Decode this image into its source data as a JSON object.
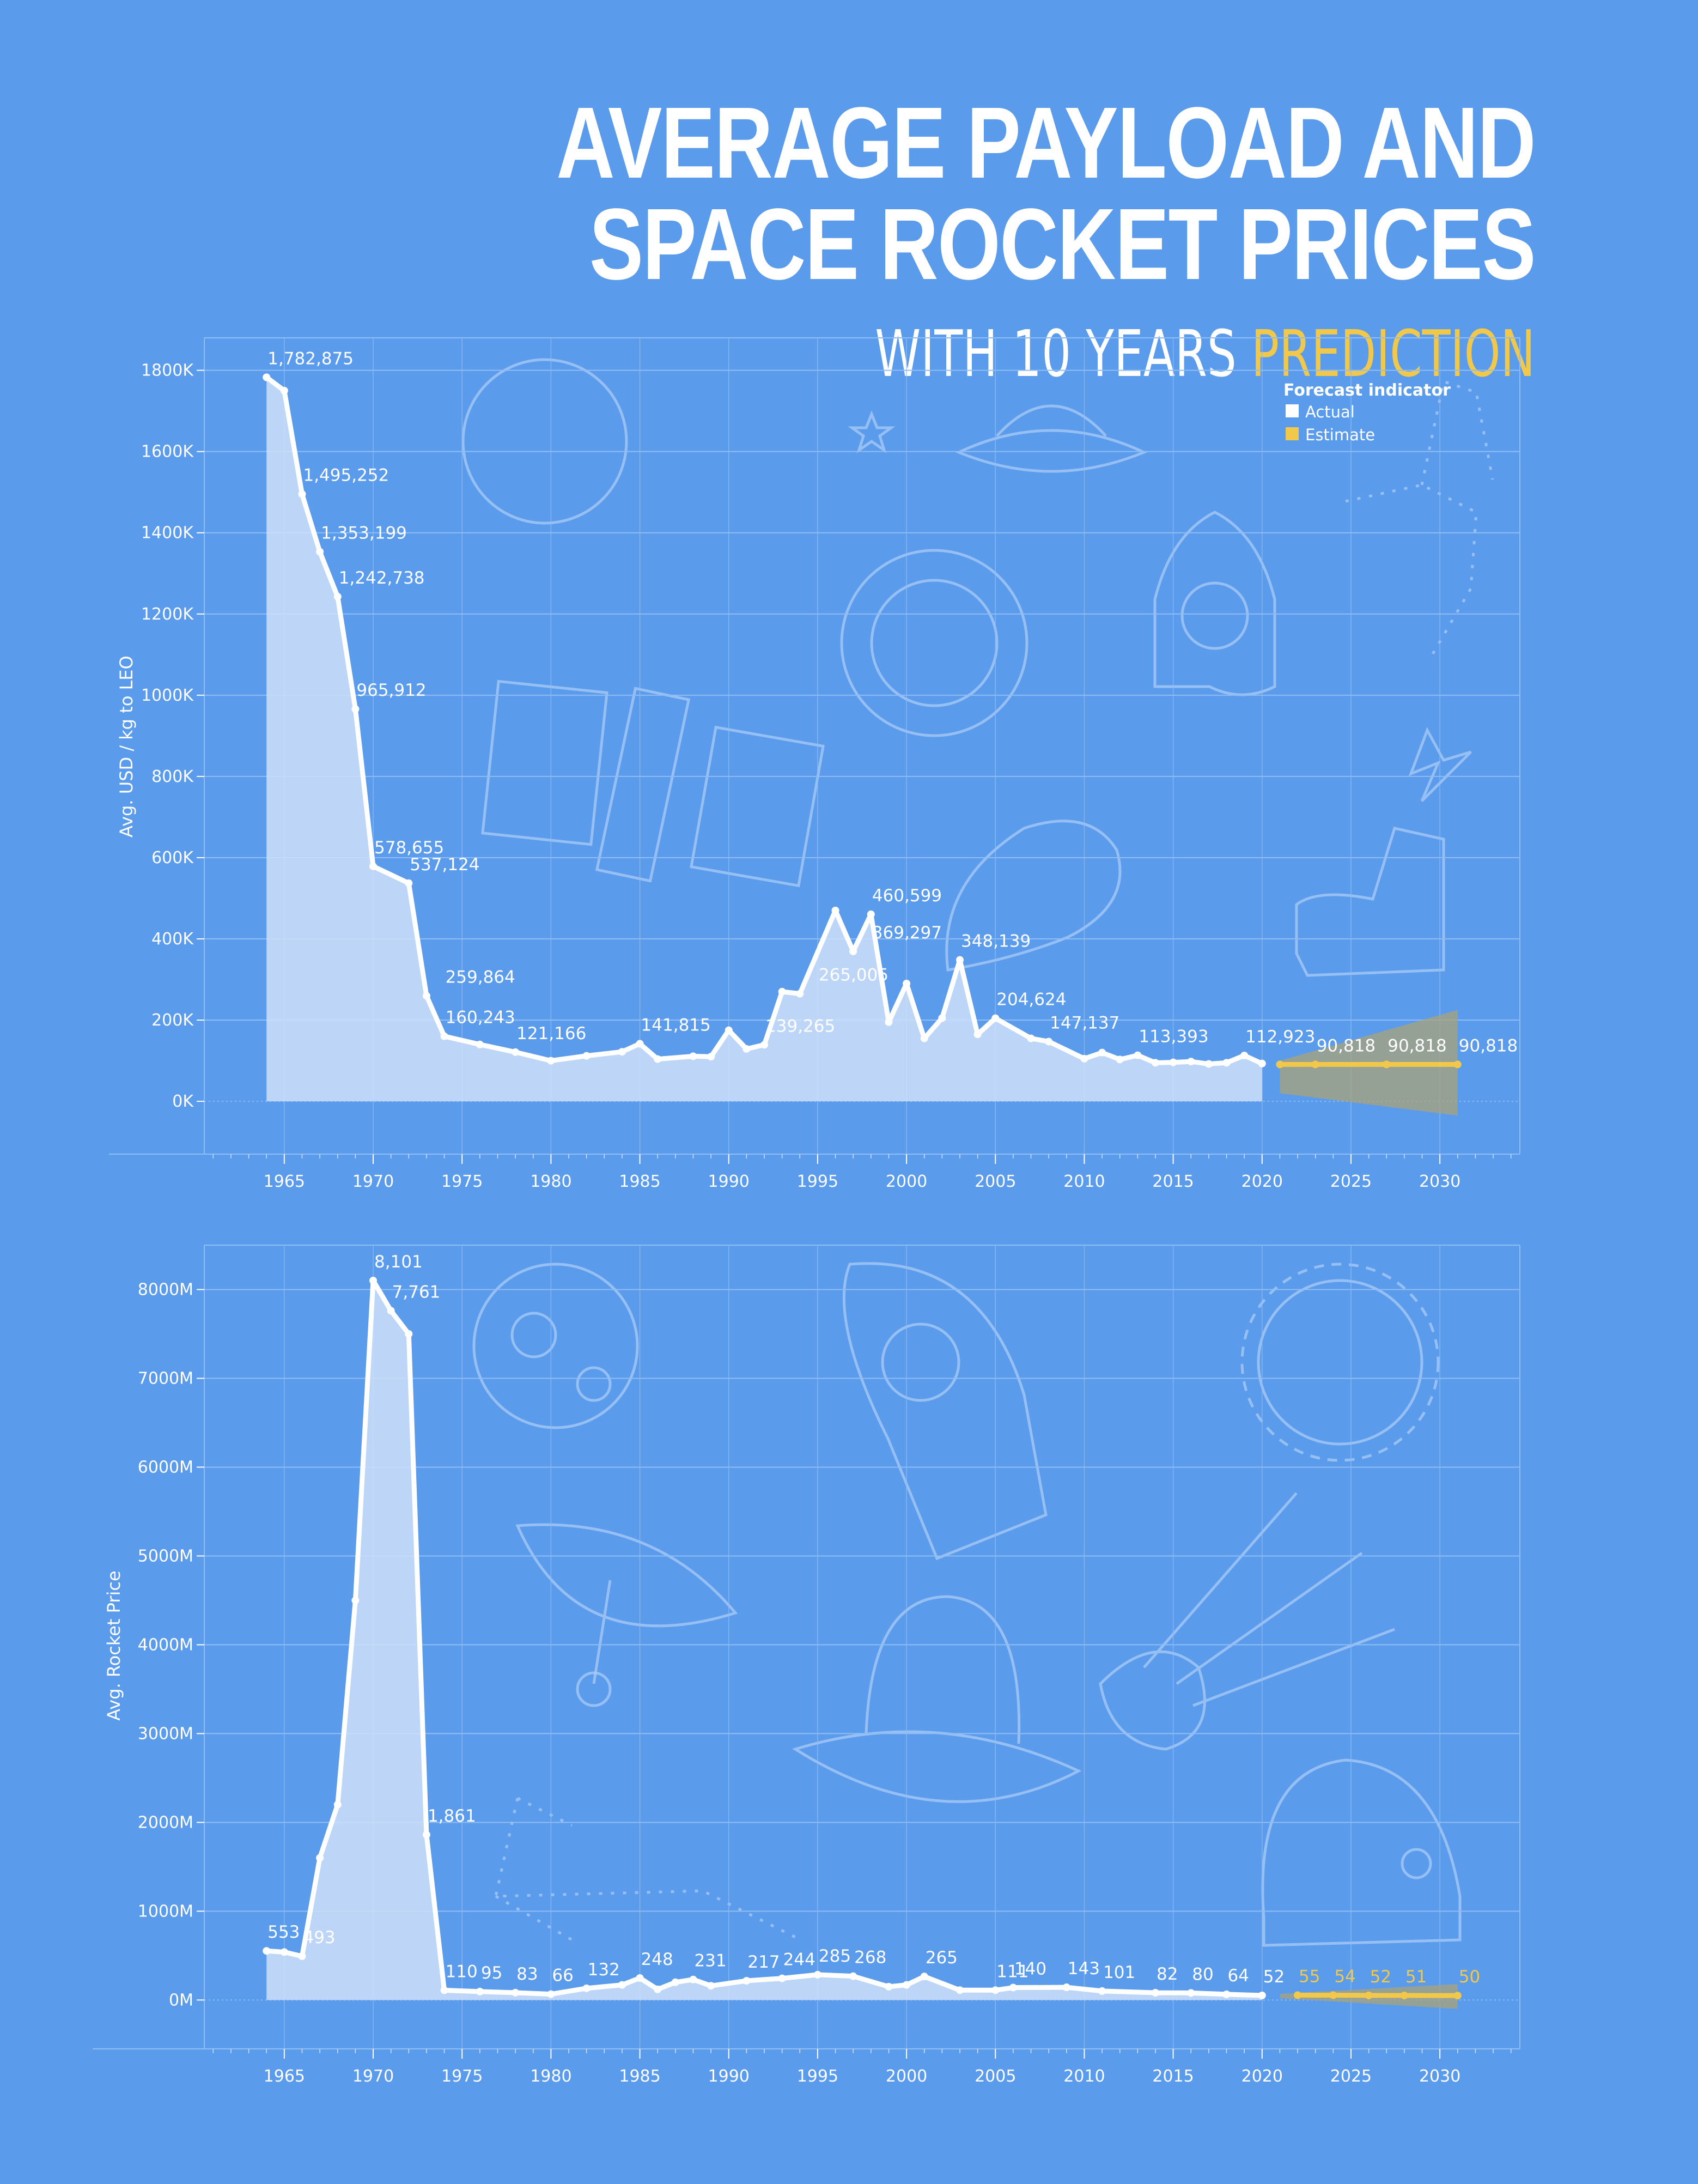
{
  "title": "AVERAGE PAYLOAD AND SPACE ROCKET PRICES",
  "subtitle_prefix": "WITH 10 YEARS ",
  "subtitle_accent": "PREDICTION",
  "colors": {
    "background": "#5b9bec",
    "actual": "#ffffff",
    "estimate": "#f2c84b",
    "area_fill": "#cfe1f9",
    "grid": "#8fbcf3"
  },
  "legend": {
    "title": "Forecast indicator",
    "actual_label": "Actual",
    "estimate_label": "Estimate"
  },
  "chart_data": [
    {
      "type": "area",
      "ylabel": "Avg. USD / kg to LEO",
      "ylim": [
        -130000,
        1880000
      ],
      "xlim": [
        1960.5,
        2034.5
      ],
      "y_ticks": [
        0,
        200000,
        400000,
        600000,
        800000,
        1000000,
        1200000,
        1400000,
        1600000,
        1800000
      ],
      "y_tick_labels": [
        "0K",
        "200K",
        "400K",
        "600K",
        "800K",
        "1000K",
        "1200K",
        "1400K",
        "1600K",
        "1800K"
      ],
      "x_ticks": [
        1965,
        1970,
        1975,
        1980,
        1985,
        1990,
        1995,
        2000,
        2005,
        2010,
        2015,
        2020,
        2025,
        2030
      ],
      "x_tick_labels": [
        "1965",
        "1970",
        "1975",
        "1980",
        "1985",
        "1990",
        "1995",
        "2000",
        "2005",
        "2010",
        "2015",
        "2020",
        "2025",
        "2030"
      ],
      "grid": true,
      "legend_position": "top-right",
      "series": [
        {
          "name": "Actual",
          "x": [
            1964,
            1965,
            1966,
            1967,
            1968,
            1969,
            1970,
            1972,
            1973,
            1974,
            1976,
            1978,
            1980,
            1982,
            1984,
            1985,
            1986,
            1988,
            1989,
            1990,
            1991,
            1992,
            1993,
            1994,
            1996,
            1997,
            1998,
            1999,
            2000,
            2001,
            2002,
            2003,
            2004,
            2005,
            2007,
            2008,
            2010,
            2011,
            2012,
            2013,
            2014,
            2015,
            2016,
            2017,
            2018,
            2019,
            2020
          ],
          "y": [
            1782875,
            1750000,
            1495252,
            1353199,
            1242738,
            965912,
            578655,
            537124,
            259864,
            160243,
            140000,
            121166,
            100000,
            112000,
            122000,
            141815,
            104000,
            111000,
            110000,
            175000,
            129000,
            139265,
            270000,
            265005,
            470000,
            369297,
            460599,
            195000,
            290000,
            155000,
            205000,
            348139,
            165000,
            204624,
            155000,
            147137,
            105000,
            120000,
            103000,
            113393,
            95000,
            96000,
            98000,
            92000,
            95000,
            112923,
            93000
          ]
        },
        {
          "name": "Estimate",
          "x": [
            2021,
            2023,
            2027,
            2031
          ],
          "y": [
            90818,
            90818,
            90818,
            90818
          ]
        }
      ],
      "data_labels": [
        {
          "x": 1964,
          "y": 1782875,
          "text": "1,782,875"
        },
        {
          "x": 1966,
          "y": 1495252,
          "text": "1,495,252"
        },
        {
          "x": 1967,
          "y": 1353199,
          "text": "1,353,199"
        },
        {
          "x": 1968,
          "y": 1242738,
          "text": "1,242,738"
        },
        {
          "x": 1969,
          "y": 965912,
          "text": "965,912"
        },
        {
          "x": 1970,
          "y": 578655,
          "text": "578,655"
        },
        {
          "x": 1972,
          "y": 537124,
          "text": "537,124"
        },
        {
          "x": 1974,
          "y": 259864,
          "text": "259,864"
        },
        {
          "x": 1974,
          "y": 160243,
          "text": "160,243"
        },
        {
          "x": 1978,
          "y": 121166,
          "text": "121,166"
        },
        {
          "x": 1985,
          "y": 141815,
          "text": "141,815"
        },
        {
          "x": 1992,
          "y": 139265,
          "text": "139,265"
        },
        {
          "x": 1995,
          "y": 265005,
          "text": "265,005"
        },
        {
          "x": 1998,
          "y": 369297,
          "text": "369,297"
        },
        {
          "x": 1998,
          "y": 460599,
          "text": "460,599"
        },
        {
          "x": 2003,
          "y": 348139,
          "text": "348,139"
        },
        {
          "x": 2005,
          "y": 204624,
          "text": "204,624"
        },
        {
          "x": 2008,
          "y": 147137,
          "text": "147,137"
        },
        {
          "x": 2013,
          "y": 113393,
          "text": "113,393"
        },
        {
          "x": 2019,
          "y": 112923,
          "text": "112,923"
        },
        {
          "x": 2023,
          "y": 90818,
          "text": "90,818"
        },
        {
          "x": 2027,
          "y": 90818,
          "text": "90,818"
        },
        {
          "x": 2031,
          "y": 90818,
          "text": "90,818"
        }
      ],
      "estimate_band": {
        "x": [
          2021,
          2031
        ],
        "lower": [
          20000,
          -35000
        ],
        "upper": [
          100000,
          225000
        ]
      }
    },
    {
      "type": "area",
      "ylabel": "Avg. Rocket Price",
      "ylim": [
        -550,
        8500
      ],
      "xlim": [
        1960.5,
        2034.5
      ],
      "y_ticks": [
        0,
        1000,
        2000,
        3000,
        4000,
        5000,
        6000,
        7000,
        8000
      ],
      "y_tick_labels": [
        "0M",
        "1000M",
        "2000M",
        "3000M",
        "4000M",
        "5000M",
        "6000M",
        "7000M",
        "8000M"
      ],
      "x_ticks": [
        1965,
        1970,
        1975,
        1980,
        1985,
        1990,
        1995,
        2000,
        2005,
        2010,
        2015,
        2020,
        2025,
        2030
      ],
      "x_tick_labels": [
        "1965",
        "1970",
        "1975",
        "1980",
        "1985",
        "1990",
        "1995",
        "2000",
        "2005",
        "2010",
        "2015",
        "2020",
        "2025",
        "2030"
      ],
      "grid": true,
      "series": [
        {
          "name": "Actual",
          "x": [
            1964,
            1965,
            1966,
            1967,
            1968,
            1969,
            1970,
            1971,
            1972,
            1973,
            1974,
            1976,
            1978,
            1980,
            1982,
            1984,
            1985,
            1986,
            1987,
            1988,
            1989,
            1991,
            1993,
            1995,
            1997,
            1999,
            2000,
            2001,
            2003,
            2005,
            2006,
            2009,
            2011,
            2014,
            2016,
            2018,
            2020
          ],
          "y": [
            553,
            540,
            493,
            1600,
            2200,
            4500,
            8101,
            7761,
            7500,
            1861,
            110,
            95,
            83,
            66,
            132,
            170,
            248,
            120,
            200,
            231,
            160,
            217,
            244,
            285,
            268,
            150,
            170,
            265,
            111,
            111,
            140,
            143,
            101,
            82,
            80,
            64,
            52
          ]
        },
        {
          "name": "Estimate",
          "x": [
            2022,
            2024,
            2026,
            2028,
            2031
          ],
          "y": [
            55,
            54,
            52,
            51,
            50
          ]
        }
      ],
      "data_labels": [
        {
          "x": 1964,
          "y": 553,
          "text": "553"
        },
        {
          "x": 1966,
          "y": 493,
          "text": "493"
        },
        {
          "x": 1970,
          "y": 8101,
          "text": "8,101"
        },
        {
          "x": 1971,
          "y": 7761,
          "text": "7,761"
        },
        {
          "x": 1973,
          "y": 1861,
          "text": "1,861"
        },
        {
          "x": 1974,
          "y": 110,
          "text": "110"
        },
        {
          "x": 1976,
          "y": 95,
          "text": "95"
        },
        {
          "x": 1978,
          "y": 83,
          "text": "83"
        },
        {
          "x": 1980,
          "y": 66,
          "text": "66"
        },
        {
          "x": 1982,
          "y": 132,
          "text": "132"
        },
        {
          "x": 1985,
          "y": 248,
          "text": "248"
        },
        {
          "x": 1988,
          "y": 231,
          "text": "231"
        },
        {
          "x": 1991,
          "y": 217,
          "text": "217"
        },
        {
          "x": 1993,
          "y": 244,
          "text": "244"
        },
        {
          "x": 1995,
          "y": 285,
          "text": "285"
        },
        {
          "x": 1997,
          "y": 268,
          "text": "268"
        },
        {
          "x": 2001,
          "y": 265,
          "text": "265"
        },
        {
          "x": 2005,
          "y": 111,
          "text": "111"
        },
        {
          "x": 2006,
          "y": 140,
          "text": "140"
        },
        {
          "x": 2009,
          "y": 143,
          "text": "143"
        },
        {
          "x": 2011,
          "y": 101,
          "text": "101"
        },
        {
          "x": 2014,
          "y": 82,
          "text": "82"
        },
        {
          "x": 2016,
          "y": 80,
          "text": "80"
        },
        {
          "x": 2018,
          "y": 64,
          "text": "64"
        },
        {
          "x": 2020,
          "y": 52,
          "text": "52"
        },
        {
          "x": 2022,
          "y": 55,
          "text": "55"
        },
        {
          "x": 2024,
          "y": 54,
          "text": "54"
        },
        {
          "x": 2026,
          "y": 52,
          "text": "52"
        },
        {
          "x": 2028,
          "y": 51,
          "text": "51"
        },
        {
          "x": 2031,
          "y": 50,
          "text": "50"
        }
      ],
      "estimate_band": {
        "x": [
          2021,
          2031
        ],
        "lower": [
          20,
          -100
        ],
        "upper": [
          70,
          180
        ]
      }
    }
  ]
}
